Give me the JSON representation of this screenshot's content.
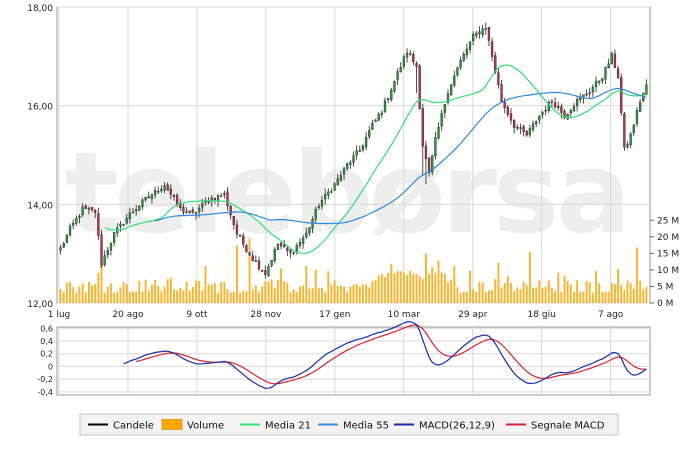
{
  "watermark": "telebørsa",
  "chart_data": [
    {
      "type": "candlestick",
      "panel": "price",
      "title": "",
      "xlabel": "",
      "ylabel": "",
      "ylim": [
        12,
        18
      ],
      "grid": true,
      "x_ticks": [
        "1 lug",
        "20 ago",
        "9 ott",
        "28 nov",
        "17 gen",
        "10 mar",
        "29 apr",
        "18 giu",
        "7 ago"
      ],
      "y_ticks": [
        "12,00",
        "14,00",
        "16,00",
        "18,00"
      ],
      "price_anchors": [
        [
          0,
          13.1
        ],
        [
          3,
          13.5
        ],
        [
          7,
          13.9
        ],
        [
          11,
          13.85
        ],
        [
          13,
          12.8
        ],
        [
          17,
          13.4
        ],
        [
          22,
          13.8
        ],
        [
          27,
          14.1
        ],
        [
          33,
          14.4
        ],
        [
          38,
          13.9
        ],
        [
          42,
          13.8
        ],
        [
          47,
          14.1
        ],
        [
          52,
          14.2
        ],
        [
          56,
          13.4
        ],
        [
          61,
          12.9
        ],
        [
          65,
          12.6
        ],
        [
          69,
          13.2
        ],
        [
          73,
          13.0
        ],
        [
          78,
          13.4
        ],
        [
          82,
          14.0
        ],
        [
          87,
          14.4
        ],
        [
          91,
          14.8
        ],
        [
          95,
          15.1
        ],
        [
          99,
          15.6
        ],
        [
          102,
          15.9
        ],
        [
          106,
          16.5
        ],
        [
          110,
          17.1
        ],
        [
          113,
          16.8
        ],
        [
          115,
          15.2
        ],
        [
          117,
          14.6
        ],
        [
          119,
          15.3
        ],
        [
          123,
          16.3
        ],
        [
          127,
          16.9
        ],
        [
          131,
          17.4
        ],
        [
          135,
          17.6
        ],
        [
          137,
          17.0
        ],
        [
          140,
          16.1
        ],
        [
          144,
          15.6
        ],
        [
          148,
          15.4
        ],
        [
          152,
          15.8
        ],
        [
          156,
          16.1
        ],
        [
          160,
          15.8
        ],
        [
          164,
          16.1
        ],
        [
          168,
          16.3
        ],
        [
          172,
          16.6
        ],
        [
          175,
          17.0
        ],
        [
          177,
          16.6
        ],
        [
          179,
          15.1
        ],
        [
          181,
          15.4
        ],
        [
          184,
          16.1
        ],
        [
          186,
          16.4
        ]
      ],
      "volume_spike_indices": [
        13,
        56,
        60,
        116,
        149,
        183
      ],
      "volume_axis": {
        "ticks": [
          "0 M",
          "5 M",
          "10 M",
          "15 M",
          "20 M",
          "25 M"
        ],
        "ylim": [
          0,
          27.5
        ],
        "tick_step": 5
      },
      "series": [
        {
          "name": "Candele",
          "kind": "candlestick"
        },
        {
          "name": "Volume",
          "kind": "bar"
        },
        {
          "name": "Media 21",
          "kind": "line",
          "period": 21,
          "color": "#33dd77"
        },
        {
          "name": "Media 55",
          "kind": "line",
          "period": 55,
          "color": "#3388dd"
        }
      ]
    },
    {
      "type": "line",
      "panel": "macd",
      "ylim": [
        -0.45,
        0.62
      ],
      "y_ticks": [
        "0,6",
        "0,4",
        "0,2",
        "0",
        "-0,2",
        "-0,4"
      ],
      "series": [
        {
          "name": "MACD(26,12,9)",
          "fast": 12,
          "slow": 26,
          "color": "#1a2ab0"
        },
        {
          "name": "Segnale MACD",
          "signal": 9,
          "color": "#dd2233"
        }
      ]
    }
  ],
  "legend": {
    "items": [
      {
        "label": "Candele",
        "kind": "line",
        "color": "#000000"
      },
      {
        "label": "Volume",
        "kind": "box",
        "color": "#ffa500"
      },
      {
        "label": "Media 21",
        "kind": "line",
        "color": "#33dd77"
      },
      {
        "label": "Media 55",
        "kind": "line",
        "color": "#3388dd"
      },
      {
        "label": "MACD(26,12,9)",
        "kind": "line",
        "color": "#1a2ab0"
      },
      {
        "label": "Segnale MACD",
        "kind": "line",
        "color": "#dd2233"
      }
    ]
  },
  "colors": {
    "candle_up": "#2e9a3a",
    "candle_down": "#c0304a",
    "grid": "#d8d8d8",
    "volume": "#ffa500"
  }
}
